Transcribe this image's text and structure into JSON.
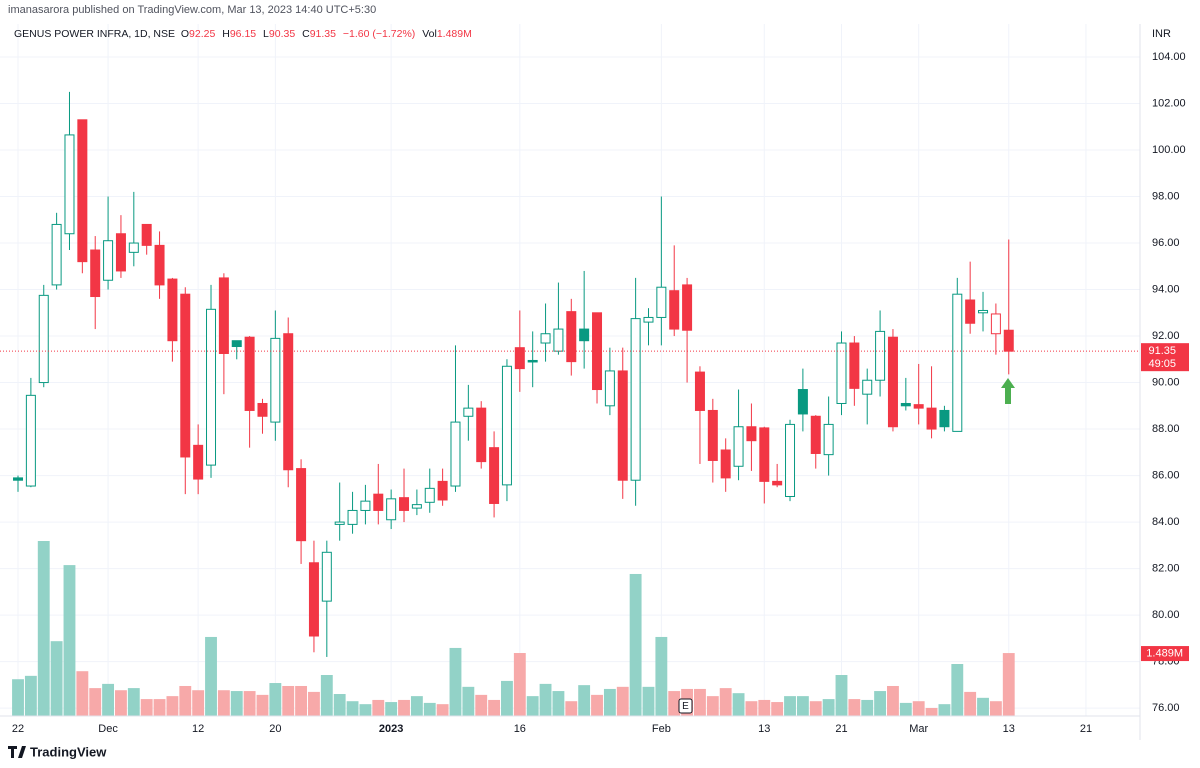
{
  "header": {
    "publisher": "imanasarora published on TradingView.com, Mar 13, 2023 14:40 UTC+5:30"
  },
  "chart_data": {
    "type": "candlestick",
    "title": "GENUS POWER INFRA, 1D, NSE",
    "currency": "INR",
    "ohlc_labels": {
      "open": "O",
      "high": "H",
      "low": "L",
      "close": "C"
    },
    "change_label": "−1.60 (−1.72%)",
    "volume_prefix": "Vol",
    "volume_value_label": "1.489M",
    "countdown": "49:05",
    "event_marker": "E",
    "open": [
      85.9,
      85.55,
      90.0,
      94.2,
      96.4,
      101.3,
      95.7,
      94.4,
      96.4,
      95.6,
      96.8,
      95.9,
      94.45,
      93.8,
      87.3,
      86.45,
      94.5,
      91.8,
      91.95,
      89.1,
      88.3,
      92.1,
      86.3,
      82.25,
      80.6,
      83.9,
      83.9,
      84.5,
      85.2,
      84.1,
      85.05,
      84.6,
      84.85,
      85.75,
      85.55,
      88.55,
      88.9,
      87.2,
      85.6,
      91.5,
      90.95,
      91.7,
      91.35,
      93.05,
      92.3,
      93.0,
      89.0,
      90.5,
      85.8,
      92.6,
      92.8,
      93.95,
      94.2,
      90.45,
      88.8,
      87.1,
      86.4,
      88.1,
      88.05,
      85.75,
      85.1,
      89.7,
      88.55,
      86.9,
      89.1,
      91.7,
      89.5,
      90.1,
      91.95,
      89.1,
      89.05,
      88.9,
      88.8,
      87.9,
      93.55,
      93.0,
      92.1,
      92.25
    ],
    "high": [
      86.0,
      90.2,
      94.2,
      97.3,
      102.5,
      101.3,
      96.3,
      98.0,
      97.2,
      98.2,
      96.8,
      96.5,
      94.5,
      94.1,
      88.2,
      94.2,
      94.7,
      91.8,
      92.0,
      89.3,
      93.1,
      92.8,
      86.7,
      83.2,
      83.2,
      85.7,
      85.3,
      85.6,
      86.5,
      85.4,
      86.3,
      85.4,
      86.3,
      86.3,
      91.6,
      89.9,
      89.2,
      87.9,
      91.0,
      93.1,
      92.2,
      93.4,
      94.3,
      93.6,
      94.8,
      93.0,
      91.5,
      91.5,
      94.5,
      93.2,
      98.0,
      95.9,
      94.5,
      90.7,
      89.3,
      87.6,
      89.7,
      89.1,
      88.1,
      86.5,
      88.4,
      90.6,
      88.6,
      89.4,
      92.2,
      92.0,
      90.6,
      93.1,
      92.3,
      90.2,
      90.8,
      90.7,
      89.0,
      94.5,
      95.2,
      93.9,
      93.4,
      96.15
    ],
    "low": [
      85.3,
      85.5,
      89.8,
      94.0,
      95.7,
      94.7,
      92.3,
      94.0,
      94.5,
      95.0,
      95.5,
      93.6,
      90.9,
      85.2,
      85.2,
      85.9,
      89.5,
      91.0,
      87.2,
      87.8,
      87.5,
      85.5,
      82.2,
      78.4,
      78.2,
      83.2,
      83.5,
      83.9,
      83.9,
      83.7,
      84.0,
      84.3,
      84.4,
      84.7,
      85.3,
      87.5,
      86.3,
      84.2,
      84.9,
      89.6,
      89.8,
      90.9,
      91.2,
      90.3,
      90.6,
      89.1,
      88.6,
      85.0,
      84.7,
      91.6,
      91.6,
      92.0,
      90.0,
      86.5,
      85.7,
      85.3,
      85.8,
      86.2,
      84.8,
      85.5,
      84.9,
      87.9,
      86.3,
      86.0,
      88.6,
      89.0,
      88.2,
      89.4,
      87.9,
      88.8,
      88.2,
      87.6,
      87.9,
      87.9,
      92.1,
      92.2,
      91.2,
      90.35
    ],
    "close": [
      85.8,
      89.45,
      93.75,
      96.8,
      100.65,
      95.2,
      93.7,
      96.1,
      94.8,
      96.0,
      95.9,
      94.2,
      91.8,
      86.8,
      85.85,
      93.15,
      91.25,
      91.55,
      88.8,
      88.55,
      91.9,
      86.25,
      83.2,
      79.1,
      82.7,
      84.0,
      84.5,
      84.9,
      84.5,
      85.0,
      84.5,
      84.75,
      85.45,
      84.95,
      88.3,
      88.9,
      86.6,
      84.8,
      90.7,
      90.6,
      90.9,
      92.1,
      92.3,
      90.9,
      91.8,
      89.7,
      90.5,
      85.8,
      92.75,
      92.8,
      94.1,
      92.3,
      92.25,
      88.8,
      86.65,
      85.9,
      88.1,
      87.5,
      85.75,
      85.6,
      88.2,
      88.65,
      86.95,
      88.2,
      91.7,
      89.75,
      90.1,
      92.2,
      88.1,
      89.0,
      88.9,
      88.0,
      88.1,
      93.8,
      92.55,
      93.1,
      92.95,
      91.35
    ],
    "volume": [
      0.87,
      0.95,
      4.14,
      1.77,
      3.57,
      1.06,
      0.66,
      0.76,
      0.61,
      0.66,
      0.4,
      0.4,
      0.47,
      0.71,
      0.61,
      1.87,
      0.61,
      0.59,
      0.59,
      0.5,
      0.78,
      0.71,
      0.71,
      0.57,
      0.97,
      0.52,
      0.35,
      0.28,
      0.38,
      0.33,
      0.38,
      0.47,
      0.31,
      0.28,
      1.61,
      0.69,
      0.5,
      0.38,
      0.83,
      1.49,
      0.47,
      0.76,
      0.59,
      0.35,
      0.73,
      0.5,
      0.64,
      0.69,
      3.36,
      0.69,
      1.87,
      0.59,
      0.64,
      0.64,
      0.47,
      0.66,
      0.54,
      0.35,
      0.38,
      0.33,
      0.47,
      0.47,
      0.35,
      0.4,
      0.97,
      0.4,
      0.38,
      0.59,
      0.71,
      0.31,
      0.35,
      0.19,
      0.28,
      1.23,
      0.57,
      0.43,
      0.35,
      1.489
    ],
    "up_color": "#089981",
    "down_color": "#f23645",
    "volume_up_color": "#92d2c7",
    "volume_down_color": "#f7a9a9",
    "ylim": [
      75.66,
      105.42
    ],
    "yticks": [
      {
        "value": 76,
        "label": "76.00"
      },
      {
        "value": 78,
        "label": "78.00"
      },
      {
        "value": 80,
        "label": "80.00"
      },
      {
        "value": 82,
        "label": "82.00"
      },
      {
        "value": 84,
        "label": "84.00"
      },
      {
        "value": 86,
        "label": "86.00"
      },
      {
        "value": 88,
        "label": "88.00"
      },
      {
        "value": 90,
        "label": "90.00"
      },
      {
        "value": 92,
        "label": "92.00"
      },
      {
        "value": 94,
        "label": "94.00"
      },
      {
        "value": 96,
        "label": "96.00"
      },
      {
        "value": 98,
        "label": "98.00"
      },
      {
        "value": 100,
        "label": "100.00"
      },
      {
        "value": 102,
        "label": "102.00"
      },
      {
        "value": 104,
        "label": "104.00"
      }
    ],
    "xlim": [
      -1.4,
      87.2
    ],
    "xticks": [
      {
        "value": 0,
        "label": "22"
      },
      {
        "value": 7,
        "label": "Dec"
      },
      {
        "value": 14,
        "label": "12"
      },
      {
        "value": 20,
        "label": "20"
      },
      {
        "value": 29,
        "label": "2023"
      },
      {
        "value": 39,
        "label": "16"
      },
      {
        "value": 50,
        "label": "Feb"
      },
      {
        "value": 58,
        "label": "13"
      },
      {
        "value": 64,
        "label": "21"
      },
      {
        "value": 70,
        "label": "Mar"
      },
      {
        "value": 77,
        "label": "13"
      },
      {
        "value": 83,
        "label": "21"
      }
    ],
    "grid": true
  },
  "footer": {
    "brand": "TradingView"
  }
}
